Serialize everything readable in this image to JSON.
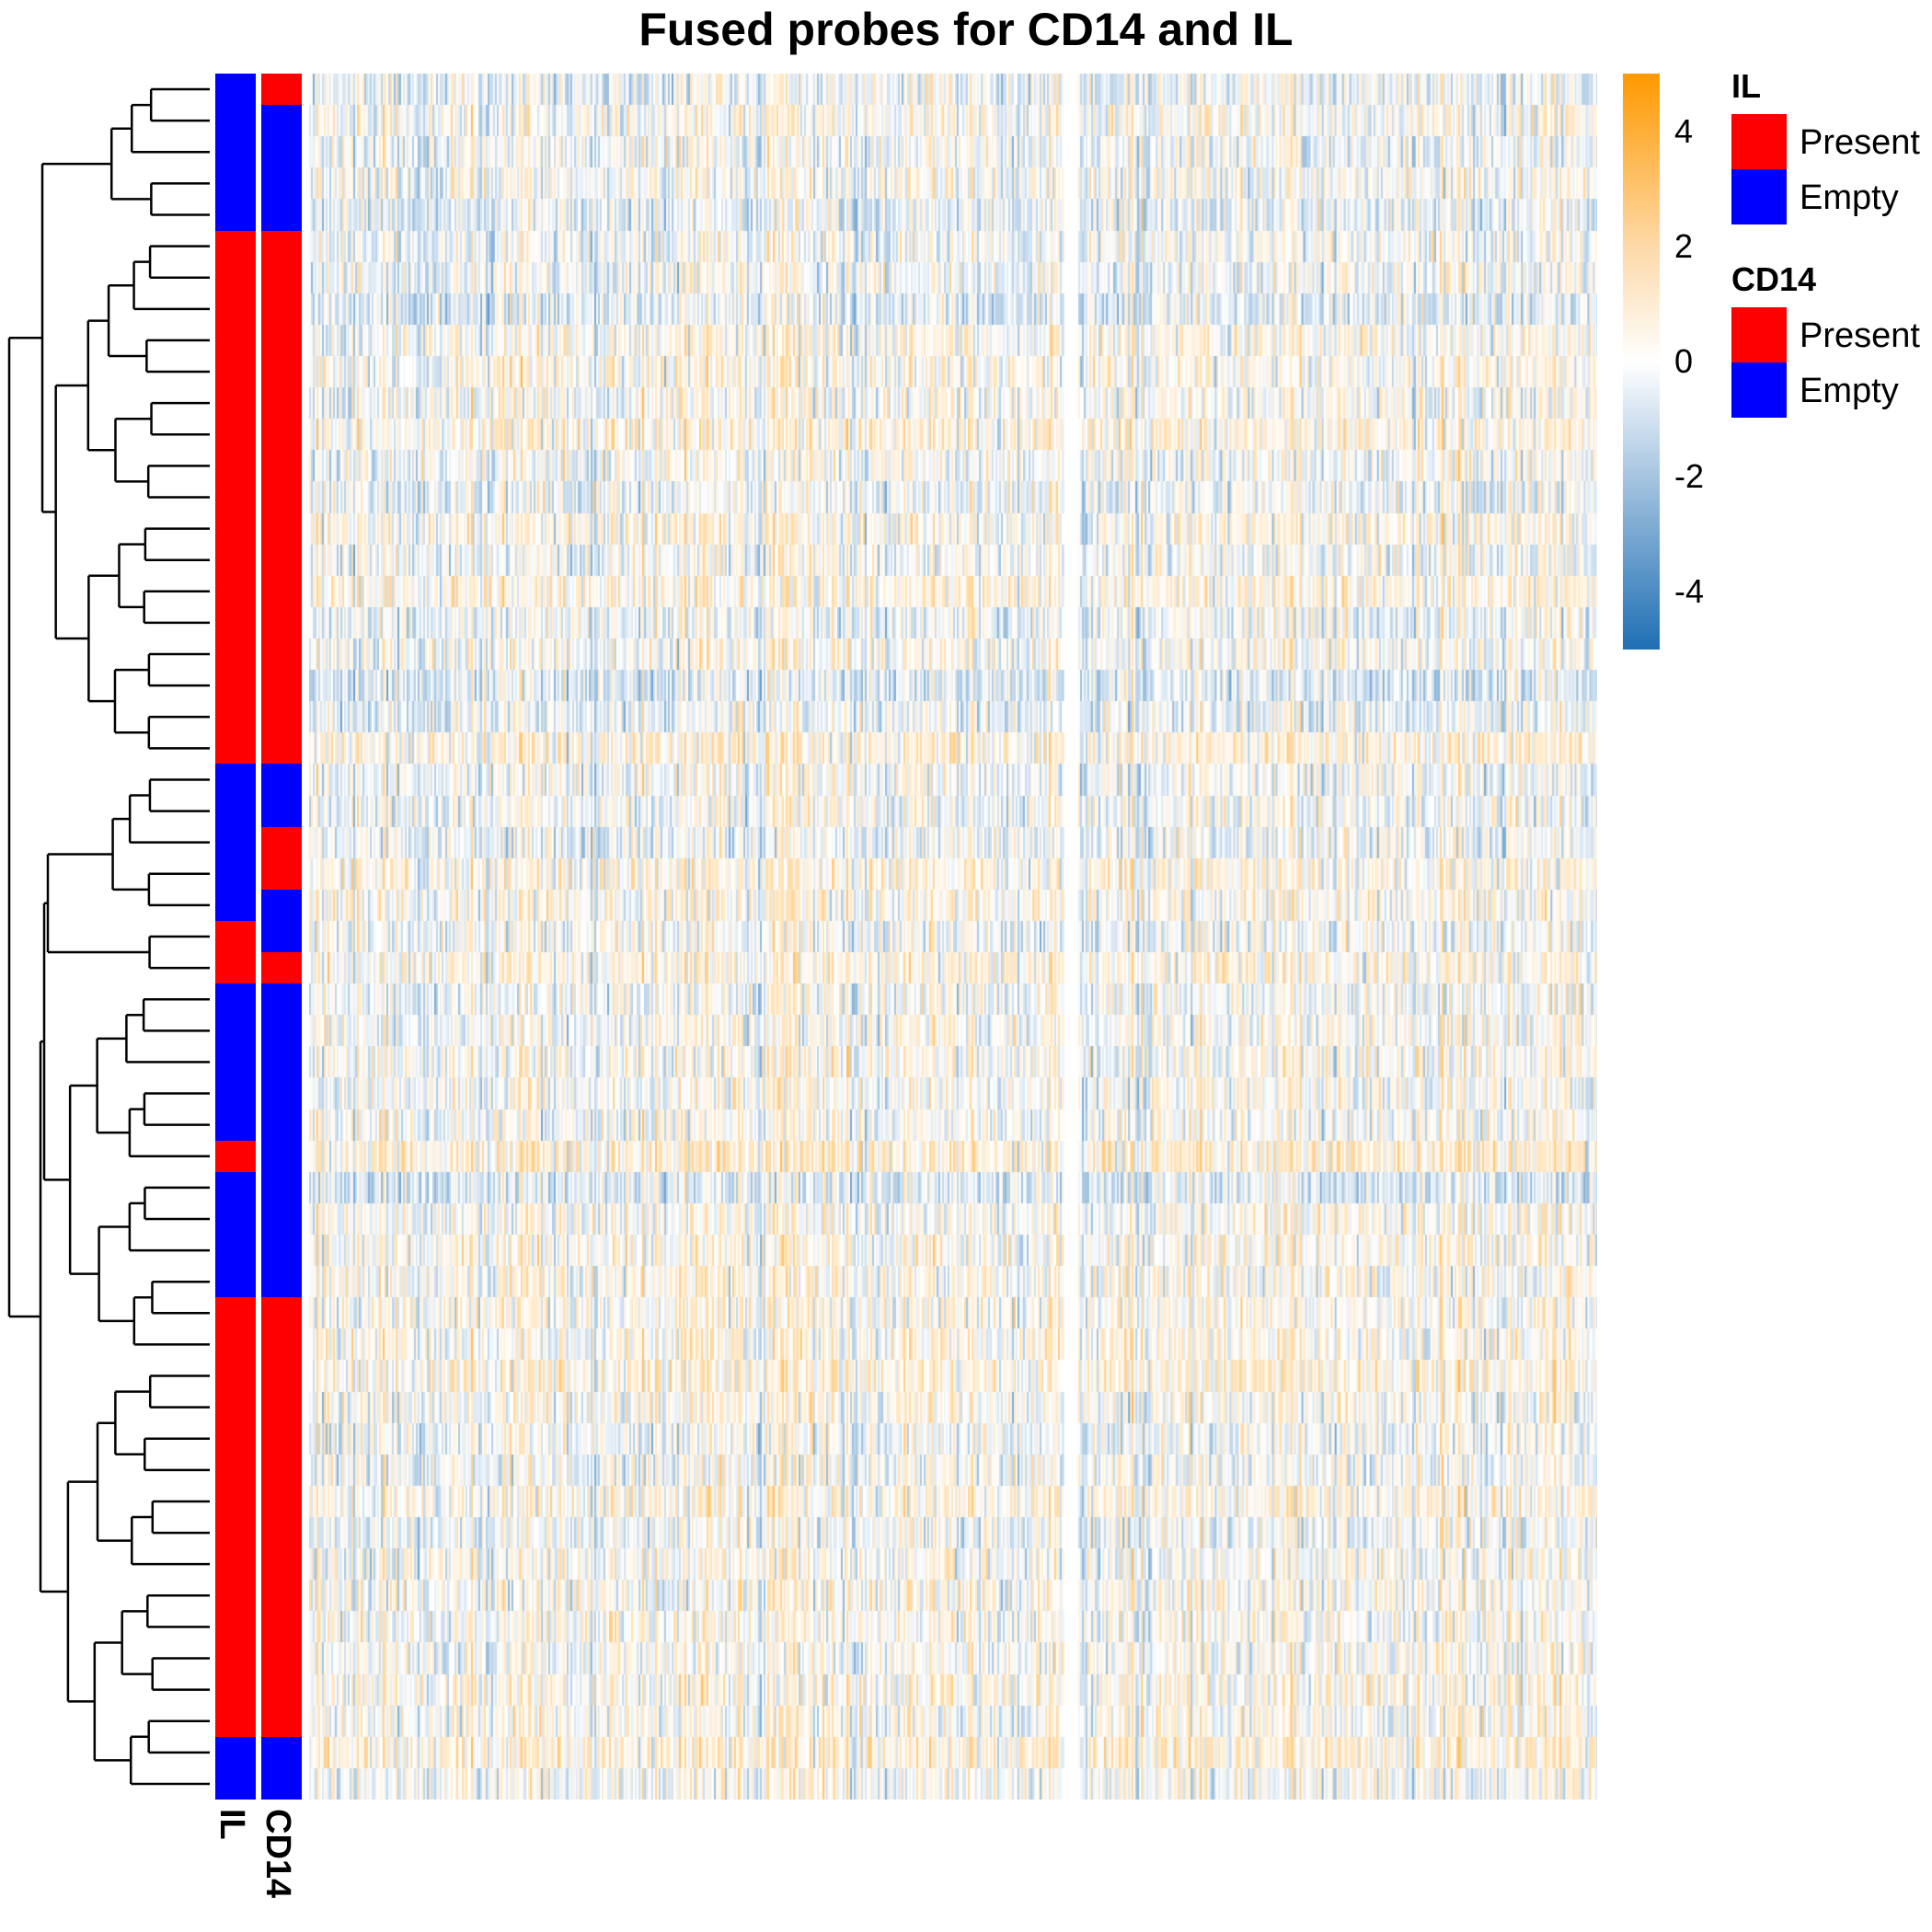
{
  "colors": {
    "present": "#FF0000",
    "empty": "#0000FF",
    "low": "#1F6FB4",
    "mid": "#FFFFFF",
    "high": "#FF9900"
  },
  "chart_data": {
    "type": "heatmap",
    "title": "Fused probes for CD14 and IL",
    "row_count": 55,
    "column_groups": 2,
    "color_scale": {
      "min": -5,
      "max": 5,
      "ticks": [
        4,
        2,
        0,
        -2,
        -4
      ]
    },
    "row_annotations": [
      {
        "name": "IL",
        "runs": [
          {
            "level": "Empty",
            "rows": 5
          },
          {
            "level": "Present",
            "rows": 17
          },
          {
            "level": "Empty",
            "rows": 5
          },
          {
            "level": "Present",
            "rows": 2
          },
          {
            "level": "Empty",
            "rows": 5
          },
          {
            "level": "Present",
            "rows": 1
          },
          {
            "level": "Empty",
            "rows": 4
          },
          {
            "level": "Present",
            "rows": 14
          },
          {
            "level": "Empty",
            "rows": 2
          }
        ]
      },
      {
        "name": "CD14",
        "runs": [
          {
            "level": "Present",
            "rows": 1
          },
          {
            "level": "Empty",
            "rows": 4
          },
          {
            "level": "Present",
            "rows": 17
          },
          {
            "level": "Empty",
            "rows": 2
          },
          {
            "level": "Present",
            "rows": 2
          },
          {
            "level": "Empty",
            "rows": 2
          },
          {
            "level": "Present",
            "rows": 1
          },
          {
            "level": "Empty",
            "rows": 10
          },
          {
            "level": "Present",
            "rows": 14
          },
          {
            "level": "Empty",
            "rows": 2
          }
        ]
      }
    ],
    "legends": [
      {
        "title": "IL",
        "items": [
          {
            "label": "Present",
            "color": "#FF0000"
          },
          {
            "label": "Empty",
            "color": "#0000FF"
          }
        ]
      },
      {
        "title": "CD14",
        "items": [
          {
            "label": "Present",
            "color": "#FF0000"
          },
          {
            "label": "Empty",
            "color": "#0000FF"
          }
        ]
      }
    ]
  }
}
